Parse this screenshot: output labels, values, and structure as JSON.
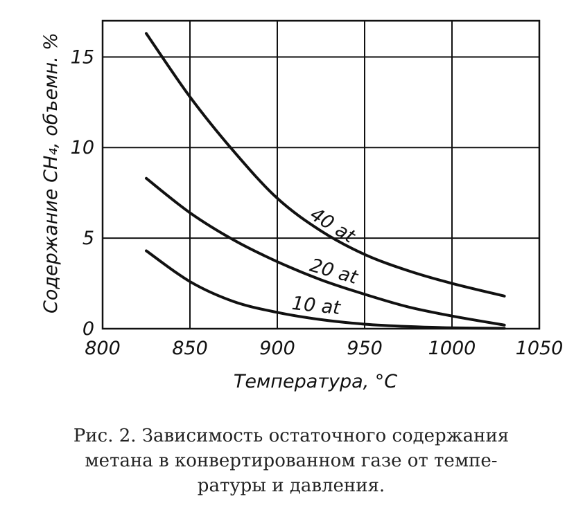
{
  "chart_data": {
    "type": "line",
    "xlabel": "Температура, °С",
    "ylabel": "Содержание CH₄, объемн. %",
    "xlim": [
      800,
      1050
    ],
    "ylim": [
      0,
      17
    ],
    "x_ticks": [
      "800",
      "850",
      "900",
      "950",
      "1000",
      "1050"
    ],
    "y_ticks": [
      "0",
      "5",
      "10",
      "15"
    ],
    "grid": true,
    "series": [
      {
        "name": "40 at",
        "x": [
          825,
          850,
          875,
          900,
          925,
          950,
          975,
          1000,
          1030
        ],
        "y": [
          16.3,
          12.8,
          9.8,
          7.2,
          5.4,
          4.1,
          3.2,
          2.5,
          1.8
        ]
      },
      {
        "name": "20 at",
        "x": [
          825,
          850,
          875,
          900,
          925,
          950,
          975,
          1000,
          1030
        ],
        "y": [
          8.3,
          6.4,
          4.9,
          3.7,
          2.7,
          1.9,
          1.2,
          0.7,
          0.2
        ]
      },
      {
        "name": "10 at",
        "x": [
          825,
          850,
          875,
          900,
          925,
          950,
          975,
          1000,
          1030
        ],
        "y": [
          4.3,
          2.6,
          1.5,
          0.9,
          0.5,
          0.25,
          0.12,
          0.05,
          0.02
        ]
      }
    ]
  },
  "caption": {
    "line1": "Рис. 2. Зависимость остаточного содержания",
    "line2": "метана в конвертированном газе от темпе-",
    "line3": "ратуры и давления."
  }
}
